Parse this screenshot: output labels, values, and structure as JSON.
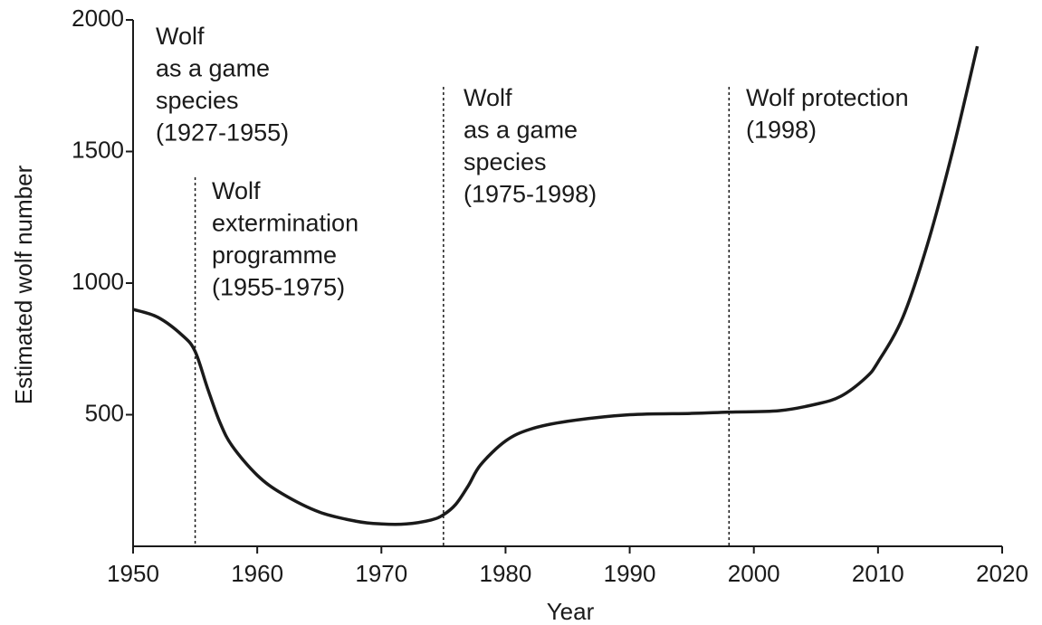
{
  "chart_data": {
    "type": "line",
    "xlabel": "Year",
    "ylabel": "Estimated wolf number",
    "x": [
      1950,
      1952,
      1954,
      1955,
      1956,
      1957,
      1958,
      1960,
      1962,
      1965,
      1968,
      1970,
      1972,
      1974,
      1975,
      1976,
      1977,
      1978,
      1980,
      1982,
      1985,
      1990,
      1995,
      1998,
      2002,
      2005,
      2007,
      2009,
      2010,
      2012,
      2014,
      2016,
      2018
    ],
    "values": [
      900,
      870,
      800,
      740,
      600,
      470,
      380,
      270,
      200,
      130,
      95,
      85,
      85,
      100,
      120,
      160,
      230,
      310,
      400,
      445,
      475,
      500,
      505,
      510,
      515,
      540,
      570,
      640,
      700,
      870,
      1150,
      1500,
      1900
    ],
    "color": "#1a1a1a",
    "xlim": [
      1950,
      2020
    ],
    "xticks": [
      1950,
      1960,
      1970,
      1980,
      1990,
      2000,
      2010,
      2020
    ],
    "ylim": [
      0,
      2000
    ],
    "yticks": [
      500,
      1000,
      1500,
      2000
    ],
    "vlines": [
      1955,
      1975,
      1998
    ],
    "annotations": [
      {
        "lines": [
          "Wolf",
          "as a game",
          "species",
          "(1927-1955)"
        ]
      },
      {
        "lines": [
          "Wolf",
          "extermination",
          "programme",
          "(1955-1975)"
        ]
      },
      {
        "lines": [
          "Wolf",
          "as a game",
          "species",
          "(1975-1998)"
        ]
      },
      {
        "lines": [
          "Wolf protection",
          "(1998)"
        ]
      }
    ]
  }
}
